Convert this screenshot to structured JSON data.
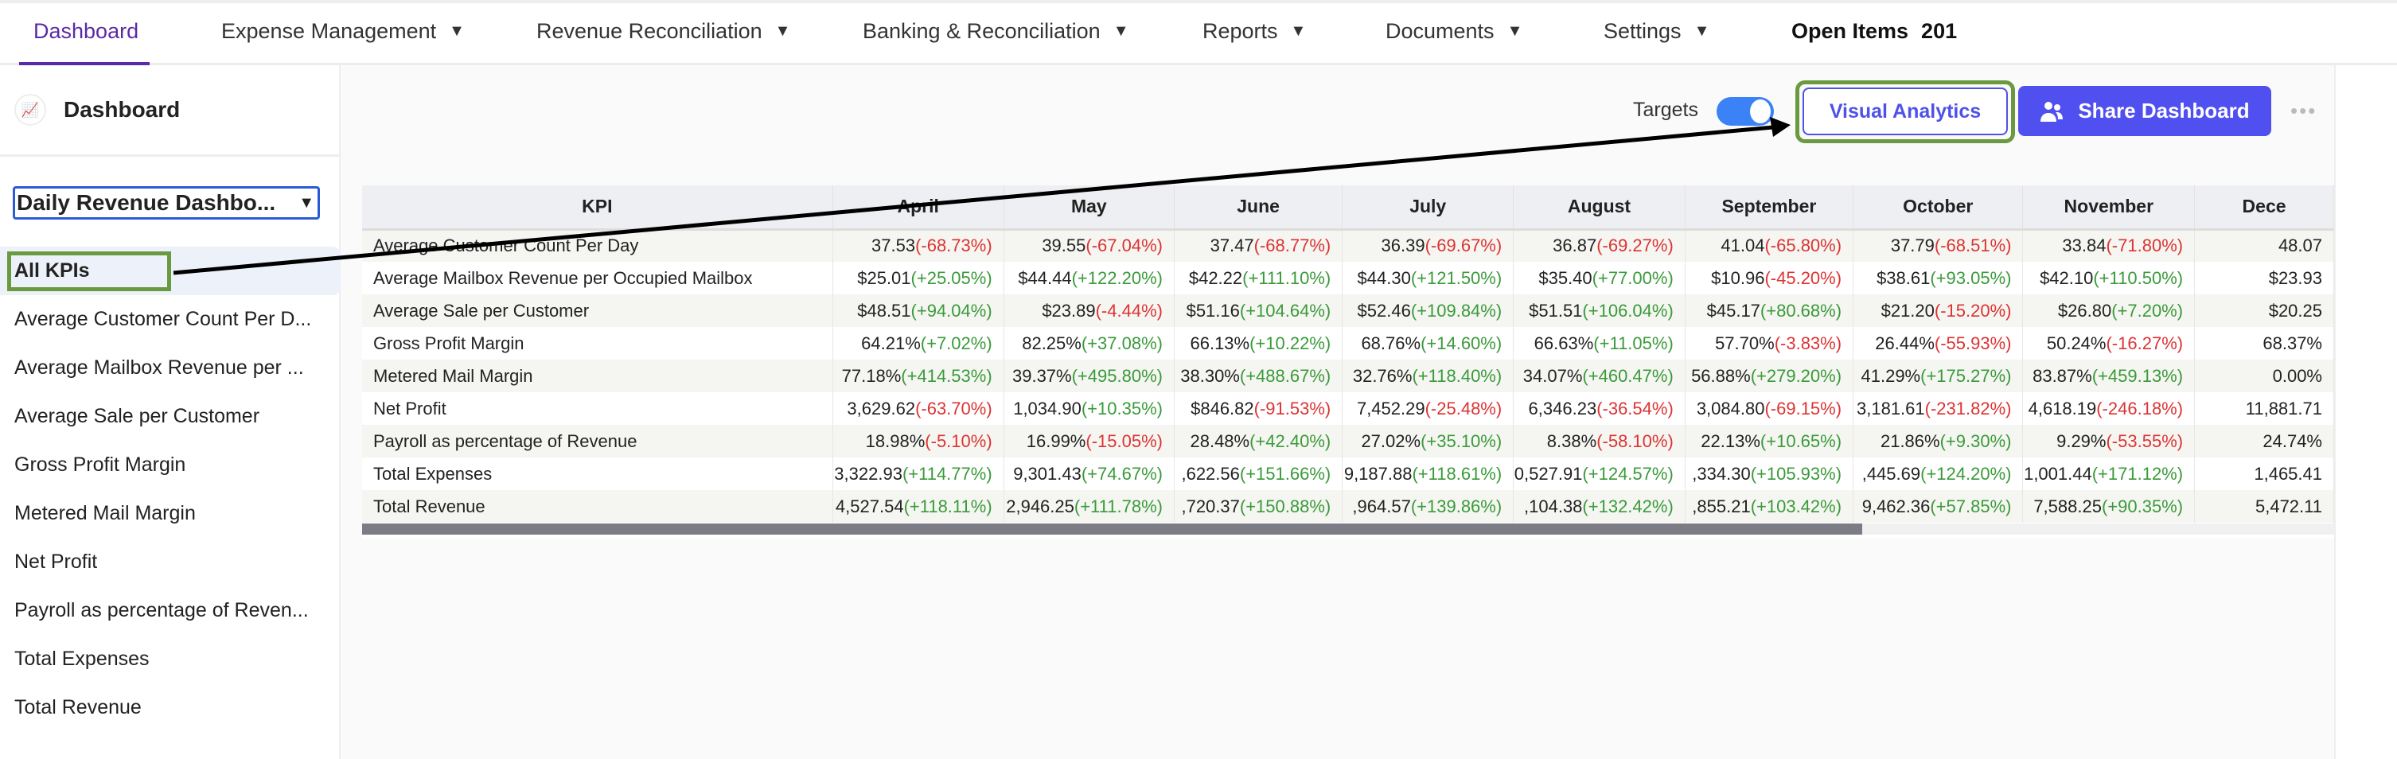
{
  "nav": {
    "items": [
      {
        "label": "Dashboard",
        "active": true,
        "dropdown": false
      },
      {
        "label": "Expense Management",
        "dropdown": true
      },
      {
        "label": "Revenue Reconciliation",
        "dropdown": true
      },
      {
        "label": "Banking & Reconciliation",
        "dropdown": true
      },
      {
        "label": "Reports",
        "dropdown": true
      },
      {
        "label": "Documents",
        "dropdown": true
      },
      {
        "label": "Settings",
        "dropdown": true
      }
    ],
    "open_items_label": "Open Items",
    "open_items_count": "201",
    "caret": "▼"
  },
  "sidebar": {
    "title": "Dashboard",
    "logo_icon": "chart-icon",
    "select_value": "Daily Revenue Dashbo...",
    "items": [
      "All KPIs",
      "Average Customer Count Per D...",
      "Average Mailbox Revenue per ...",
      "Average Sale per Customer",
      "Gross Profit Margin",
      "Metered Mail Margin",
      "Net Profit",
      "Payroll as percentage of Reven...",
      "Total Expenses",
      "Total Revenue"
    ],
    "active_item": "All KPIs"
  },
  "toolbar": {
    "targets_label": "Targets",
    "targets_on": true,
    "visual_analytics": "Visual Analytics",
    "share_dashboard": "Share Dashboard",
    "more": "•••"
  },
  "colors": {
    "accent": "#5050f0",
    "nav_active": "#5b2aa8",
    "positive": "#3a9a3a",
    "negative": "#dd3333",
    "highlight": "#6a9a3f"
  },
  "table": {
    "headers": [
      "KPI",
      "April",
      "May",
      "June",
      "July",
      "August",
      "September",
      "October",
      "November",
      "Dece"
    ],
    "rows": [
      {
        "kpi": "Average Customer Count Per Day",
        "cells": [
          [
            "37.53",
            "(-68.73%)"
          ],
          [
            "39.55",
            "(-67.04%)"
          ],
          [
            "37.47",
            "(-68.77%)"
          ],
          [
            "36.39",
            "(-69.67%)"
          ],
          [
            "36.87",
            "(-69.27%)"
          ],
          [
            "41.04",
            "(-65.80%)"
          ],
          [
            "37.79",
            "(-68.51%)"
          ],
          [
            "33.84",
            "(-71.80%)"
          ],
          [
            "48.07",
            ""
          ]
        ]
      },
      {
        "kpi": "Average Mailbox Revenue per Occupied Mailbox",
        "cells": [
          [
            "$25.01",
            "(+25.05%)"
          ],
          [
            "$44.44",
            "(+122.20%)"
          ],
          [
            "$42.22",
            "(+111.10%)"
          ],
          [
            "$44.30",
            "(+121.50%)"
          ],
          [
            "$35.40",
            "(+77.00%)"
          ],
          [
            "$10.96",
            "(-45.20%)"
          ],
          [
            "$38.61",
            "(+93.05%)"
          ],
          [
            "$42.10",
            "(+110.50%)"
          ],
          [
            "$23.93",
            ""
          ]
        ]
      },
      {
        "kpi": "Average Sale per Customer",
        "cells": [
          [
            "$48.51",
            "(+94.04%)"
          ],
          [
            "$23.89",
            "(-4.44%)"
          ],
          [
            "$51.16",
            "(+104.64%)"
          ],
          [
            "$52.46",
            "(+109.84%)"
          ],
          [
            "$51.51",
            "(+106.04%)"
          ],
          [
            "$45.17",
            "(+80.68%)"
          ],
          [
            "$21.20",
            "(-15.20%)"
          ],
          [
            "$26.80",
            "(+7.20%)"
          ],
          [
            "$20.25",
            ""
          ]
        ]
      },
      {
        "kpi": "Gross Profit Margin",
        "cells": [
          [
            "64.21%",
            "(+7.02%)"
          ],
          [
            "82.25%",
            "(+37.08%)"
          ],
          [
            "66.13%",
            "(+10.22%)"
          ],
          [
            "68.76%",
            "(+14.60%)"
          ],
          [
            "66.63%",
            "(+11.05%)"
          ],
          [
            "57.70%",
            "(-3.83%)"
          ],
          [
            "26.44%",
            "(-55.93%)"
          ],
          [
            "50.24%",
            "(-16.27%)"
          ],
          [
            "68.37%",
            ""
          ]
        ]
      },
      {
        "kpi": "Metered Mail Margin",
        "cells": [
          [
            "77.18%",
            "(+414.53%)"
          ],
          [
            "39.37%",
            "(+495.80%)"
          ],
          [
            "38.30%",
            "(+488.67%)"
          ],
          [
            "32.76%",
            "(+118.40%)"
          ],
          [
            "34.07%",
            "(+460.47%)"
          ],
          [
            "56.88%",
            "(+279.20%)"
          ],
          [
            "41.29%",
            "(+175.27%)"
          ],
          [
            "83.87%",
            "(+459.13%)"
          ],
          [
            "0.00%",
            ""
          ]
        ]
      },
      {
        "kpi": "Net Profit",
        "cells": [
          [
            "3,629.62",
            "(-63.70%)"
          ],
          [
            "1,034.90",
            "(+10.35%)"
          ],
          [
            "$846.82",
            "(-91.53%)"
          ],
          [
            "7,452.29",
            "(-25.48%)"
          ],
          [
            "6,346.23",
            "(-36.54%)"
          ],
          [
            "3,084.80",
            "(-69.15%)"
          ],
          [
            "3,181.61",
            "(-231.82%)"
          ],
          [
            "4,618.19",
            "(-246.18%)"
          ],
          [
            "11,881.71",
            ""
          ]
        ]
      },
      {
        "kpi": "Payroll as percentage of Revenue",
        "cells": [
          [
            "18.98%",
            "(-5.10%)"
          ],
          [
            "16.99%",
            "(-15.05%)"
          ],
          [
            "28.48%",
            "(+42.40%)"
          ],
          [
            "27.02%",
            "(+35.10%)"
          ],
          [
            "8.38%",
            "(-58.10%)"
          ],
          [
            "22.13%",
            "(+10.65%)"
          ],
          [
            "21.86%",
            "(+9.30%)"
          ],
          [
            "9.29%",
            "(-53.55%)"
          ],
          [
            "24.74%",
            ""
          ]
        ]
      },
      {
        "kpi": "Total Expenses",
        "cells": [
          [
            "3,322.93",
            "(+114.77%)"
          ],
          [
            "9,301.43",
            "(+74.67%)"
          ],
          [
            ",622.56",
            "(+151.66%)"
          ],
          [
            "9,187.88",
            "(+118.61%)"
          ],
          [
            "0,527.91",
            "(+124.57%)"
          ],
          [
            ",334.30",
            "(+105.93%)"
          ],
          [
            ",445.69",
            "(+124.20%)"
          ],
          [
            "1,001.44",
            "(+171.12%)"
          ],
          [
            "1,465.41",
            ""
          ]
        ]
      },
      {
        "kpi": "Total Revenue",
        "cells": [
          [
            "4,527.54",
            "(+118.11%)"
          ],
          [
            "2,946.25",
            "(+111.78%)"
          ],
          [
            ",720.37",
            "(+150.88%)"
          ],
          [
            ",964.57",
            "(+139.86%)"
          ],
          [
            ",104.38",
            "(+132.42%)"
          ],
          [
            ",855.21",
            "(+103.42%)"
          ],
          [
            "9,462.36",
            "(+57.85%)"
          ],
          [
            "7,588.25",
            "(+90.35%)"
          ],
          [
            "5,472.11",
            ""
          ]
        ]
      }
    ]
  }
}
